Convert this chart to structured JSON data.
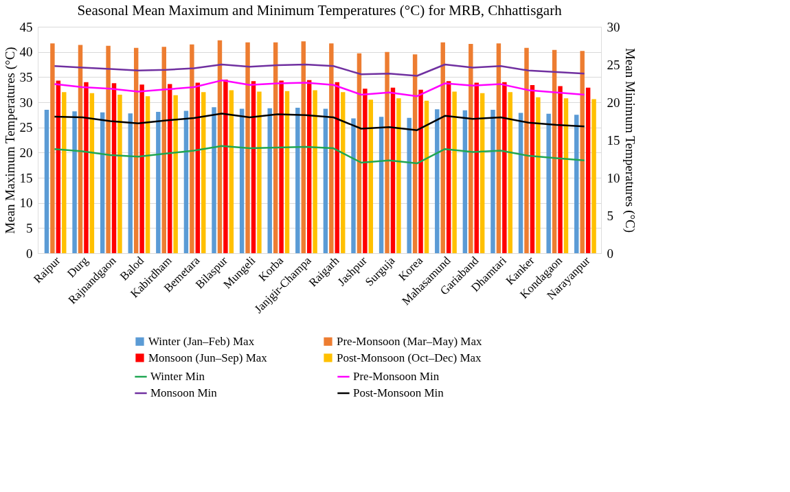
{
  "chart_data": {
    "type": "bar",
    "title": "Seasonal Mean Maximum and Minimum Temperatures (°C) for MRB, Chhattisgarh",
    "ylabel": "Mean Maximum Temperatures (°C)",
    "y2label": "Mean Minimum Temperatures (°C)",
    "categories": [
      "Raipur",
      "Durg",
      "Rajnandgaon",
      "Balod",
      "Kabirdham",
      "Bemetara",
      "Bilaspur",
      "Mungeli",
      "Korba",
      "Janjgir-Champa",
      "Raigarh",
      "Jashpur",
      "Surguja",
      "Korea",
      "Mahasamund",
      "Gariaband",
      "Dhamtari",
      "Kanker",
      "Kondagaon",
      "Narayanpur"
    ],
    "ylim": [
      0,
      45
    ],
    "yticks": [
      0,
      5,
      10,
      15,
      20,
      25,
      30,
      35,
      40,
      45
    ],
    "y2lim": [
      0,
      30
    ],
    "y2ticks": [
      0,
      5,
      10,
      15,
      20,
      25,
      30
    ],
    "grid": "y",
    "legend": "bottom",
    "series": [
      {
        "name": "Winter (Jan–Feb) Max",
        "type": "bar",
        "color": "#5b9bd5",
        "values": [
          28.5,
          28.2,
          28.0,
          27.8,
          28.1,
          28.3,
          29.0,
          28.7,
          28.8,
          28.9,
          28.7,
          26.8,
          27.1,
          26.9,
          28.6,
          28.4,
          28.5,
          27.9,
          27.7,
          27.5
        ]
      },
      {
        "name": "Pre-Monsoon (Mar–May) Max",
        "type": "bar",
        "color": "#ed7d31",
        "values": [
          41.7,
          41.4,
          41.2,
          40.8,
          41.0,
          41.5,
          42.3,
          41.9,
          41.9,
          42.1,
          41.7,
          39.7,
          40.0,
          39.5,
          41.9,
          41.6,
          41.7,
          40.8,
          40.4,
          40.2
        ]
      },
      {
        "name": "Monsoon (Jun–Sep) Max",
        "type": "bar",
        "color": "#ff0000",
        "values": [
          34.3,
          34.0,
          33.8,
          33.5,
          33.6,
          33.9,
          34.5,
          34.2,
          34.3,
          34.4,
          34.0,
          32.7,
          32.9,
          32.5,
          34.2,
          33.9,
          34.0,
          33.4,
          33.2,
          32.9
        ]
      },
      {
        "name": "Post-Monsoon (Oct–Dec) Max",
        "type": "bar",
        "color": "#ffc000",
        "values": [
          32.0,
          31.8,
          31.5,
          31.2,
          31.4,
          32.0,
          32.4,
          32.1,
          32.2,
          32.4,
          32.0,
          30.5,
          30.8,
          30.3,
          32.1,
          31.8,
          32.0,
          31.0,
          30.8,
          30.6
        ]
      },
      {
        "name": "Winter Min",
        "type": "line",
        "axis": "y2",
        "color": "#1fa652",
        "values": [
          13.8,
          13.5,
          13.0,
          12.8,
          13.2,
          13.6,
          14.2,
          13.9,
          14.0,
          14.1,
          13.9,
          12.0,
          12.3,
          11.9,
          13.8,
          13.4,
          13.6,
          12.9,
          12.6,
          12.3
        ]
      },
      {
        "name": "Pre-Monsoon Min",
        "type": "line",
        "axis": "y2",
        "color": "#ff00ff",
        "values": [
          22.4,
          22.0,
          21.8,
          21.4,
          21.7,
          22.0,
          22.9,
          22.3,
          22.5,
          22.6,
          22.3,
          21.0,
          21.3,
          20.8,
          22.5,
          22.2,
          22.4,
          21.6,
          21.3,
          21.0
        ]
      },
      {
        "name": "Monsoon Min",
        "type": "line",
        "axis": "y2",
        "color": "#7030a0",
        "values": [
          24.8,
          24.6,
          24.4,
          24.2,
          24.3,
          24.5,
          25.0,
          24.7,
          24.9,
          25.0,
          24.8,
          23.7,
          23.8,
          23.5,
          25.0,
          24.6,
          24.8,
          24.2,
          24.0,
          23.8
        ]
      },
      {
        "name": "Post-Monsoon Min",
        "type": "line",
        "axis": "y2",
        "color": "#000000",
        "values": [
          18.1,
          18.0,
          17.5,
          17.2,
          17.6,
          17.9,
          18.5,
          18.0,
          18.4,
          18.3,
          18.0,
          16.5,
          16.7,
          16.3,
          18.2,
          17.8,
          18.0,
          17.3,
          17.0,
          16.8
        ]
      }
    ]
  }
}
